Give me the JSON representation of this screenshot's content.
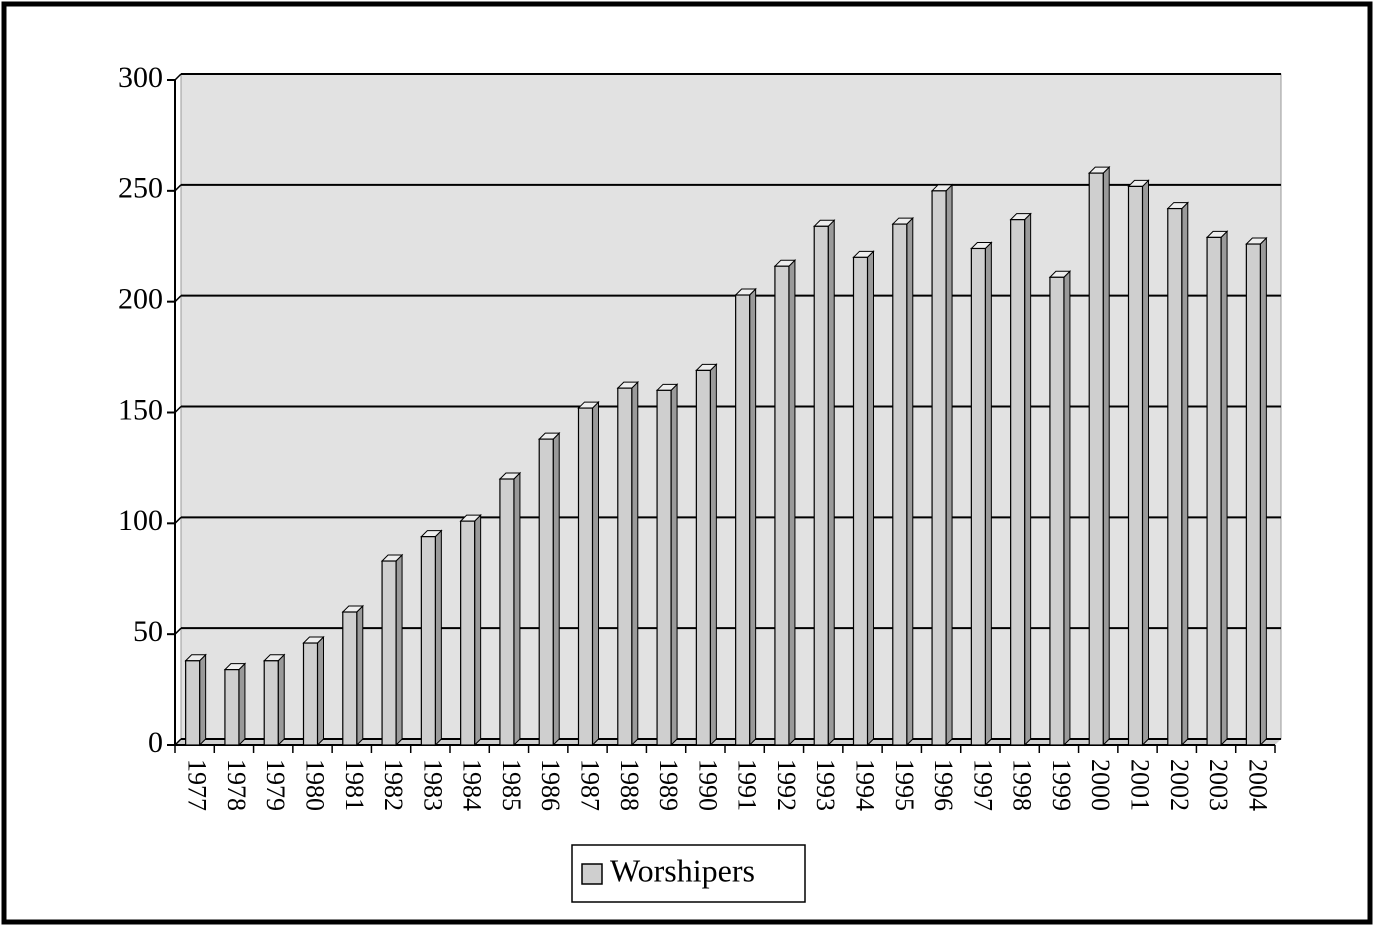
{
  "chart_data": {
    "type": "bar",
    "categories": [
      "1977",
      "1978",
      "1979",
      "1980",
      "1981",
      "1982",
      "1983",
      "1984",
      "1985",
      "1986",
      "1987",
      "1988",
      "1989",
      "1990",
      "1991",
      "1992",
      "1993",
      "1994",
      "1995",
      "1996",
      "1997",
      "1998",
      "1999",
      "2000",
      "2001",
      "2002",
      "2003",
      "2004"
    ],
    "series": [
      {
        "name": "Worshipers",
        "color": "#cfcfcf",
        "values": [
          38,
          34,
          38,
          46,
          60,
          83,
          94,
          101,
          120,
          138,
          152,
          161,
          160,
          169,
          203,
          216,
          234,
          220,
          235,
          250,
          224,
          237,
          211,
          258,
          252,
          242,
          229,
          226
        ]
      }
    ],
    "ylim": [
      0,
      300
    ],
    "yticks": [
      0,
      50,
      100,
      150,
      200,
      250,
      300
    ],
    "grid": true,
    "legend": "bottom"
  }
}
